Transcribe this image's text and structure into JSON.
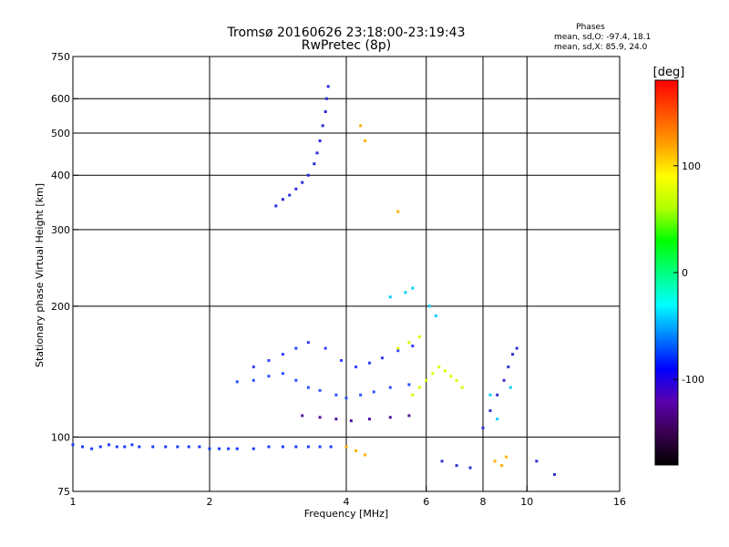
{
  "header": {
    "title": "Tromsø 20160626 23:18:00-23:19:43",
    "subtitle": "RwPretec (8p)",
    "stats_title": "Phases",
    "stats_o": "mean, sd,O: -97.4, 18.1",
    "stats_x": "mean, sd,X:  85.9, 24.0"
  },
  "chart_data": {
    "type": "scatter",
    "title": "Tromsø 20160626 23:18:00-23:19:43",
    "subtitle": "RwPretec (8p)",
    "xlabel": "Frequency [MHz]",
    "ylabel": "Stationary phase Virtual Height [km]",
    "x_scale": "log",
    "y_scale": "log",
    "xlim": [
      1,
      16
    ],
    "ylim": [
      75,
      750
    ],
    "x_ticks": [
      1,
      2,
      4,
      6,
      8,
      10,
      16
    ],
    "y_ticks": [
      75,
      100,
      200,
      300,
      400,
      500,
      600,
      750
    ],
    "x_grid": [
      2,
      4,
      6,
      8,
      10
    ],
    "y_grid": [
      100,
      200,
      300,
      400,
      500,
      600
    ],
    "colorbar": {
      "label": "[deg]",
      "range": [
        -180,
        180
      ],
      "ticks": [
        100,
        0,
        -100
      ],
      "colormap": [
        "#000000",
        "#3a0050",
        "#5a00b0",
        "#0000ff",
        "#0080ff",
        "#00ffff",
        "#00ff80",
        "#00ff00",
        "#b0ff00",
        "#ffff00",
        "#ffa000",
        "#ff5000",
        "#ff0000"
      ]
    },
    "series": [
      {
        "color": "#1a3cff",
        "points": [
          [
            1.0,
            96
          ],
          [
            1.05,
            95
          ],
          [
            1.1,
            94
          ],
          [
            1.15,
            95
          ],
          [
            1.2,
            96
          ],
          [
            1.25,
            95
          ],
          [
            1.3,
            95
          ],
          [
            1.35,
            96
          ],
          [
            1.4,
            95
          ],
          [
            1.5,
            95
          ],
          [
            1.6,
            95
          ],
          [
            1.7,
            95
          ],
          [
            1.8,
            95
          ],
          [
            1.9,
            95
          ],
          [
            2.0,
            94
          ],
          [
            2.1,
            94
          ],
          [
            2.2,
            94
          ],
          [
            2.3,
            94
          ],
          [
            2.5,
            94
          ],
          [
            2.7,
            95
          ],
          [
            2.9,
            95
          ],
          [
            3.1,
            95
          ],
          [
            3.3,
            95
          ],
          [
            3.5,
            95
          ],
          [
            3.7,
            95
          ]
        ]
      },
      {
        "color": "#2a2ae0",
        "points": [
          [
            2.8,
            340
          ],
          [
            2.9,
            352
          ],
          [
            3.0,
            360
          ],
          [
            3.1,
            372
          ],
          [
            3.2,
            385
          ],
          [
            3.3,
            400
          ],
          [
            3.4,
            425
          ],
          [
            3.45,
            450
          ],
          [
            3.5,
            480
          ],
          [
            3.55,
            520
          ],
          [
            3.6,
            560
          ],
          [
            3.62,
            600
          ],
          [
            3.65,
            640
          ]
        ]
      },
      {
        "color": "#2850ff",
        "points": [
          [
            2.3,
            134
          ],
          [
            2.5,
            135
          ],
          [
            2.7,
            138
          ],
          [
            2.9,
            140
          ],
          [
            3.1,
            135
          ],
          [
            3.3,
            130
          ],
          [
            3.5,
            128
          ],
          [
            3.8,
            125
          ],
          [
            4.0,
            123
          ],
          [
            4.3,
            125
          ],
          [
            4.6,
            127
          ],
          [
            5.0,
            130
          ],
          [
            5.5,
            132
          ]
        ]
      },
      {
        "color": "#3040ff",
        "points": [
          [
            2.5,
            145
          ],
          [
            2.7,
            150
          ],
          [
            2.9,
            155
          ],
          [
            3.1,
            160
          ],
          [
            3.3,
            165
          ],
          [
            3.6,
            160
          ],
          [
            3.9,
            150
          ],
          [
            4.2,
            145
          ],
          [
            4.5,
            148
          ],
          [
            4.8,
            152
          ],
          [
            5.2,
            158
          ],
          [
            5.6,
            162
          ]
        ]
      },
      {
        "color": "#5010a0",
        "points": [
          [
            3.2,
            112
          ],
          [
            3.5,
            111
          ],
          [
            3.8,
            110
          ],
          [
            4.1,
            109
          ],
          [
            4.5,
            110
          ],
          [
            5.0,
            111
          ],
          [
            5.5,
            112
          ]
        ]
      },
      {
        "color": "#d8ff00",
        "points": [
          [
            5.6,
            125
          ],
          [
            5.8,
            130
          ],
          [
            6.0,
            135
          ],
          [
            6.2,
            140
          ],
          [
            6.4,
            145
          ],
          [
            6.6,
            142
          ],
          [
            6.8,
            138
          ],
          [
            7.0,
            135
          ],
          [
            7.2,
            130
          ],
          [
            5.2,
            160
          ],
          [
            5.5,
            165
          ],
          [
            5.8,
            170
          ]
        ]
      },
      {
        "color": "#ffb000",
        "points": [
          [
            4.0,
            95
          ],
          [
            4.2,
            93
          ],
          [
            4.4,
            91
          ],
          [
            8.5,
            88
          ],
          [
            8.8,
            86
          ],
          [
            9.0,
            90
          ],
          [
            4.4,
            480
          ],
          [
            4.3,
            520
          ],
          [
            5.2,
            330
          ]
        ]
      },
      {
        "color": "#00d0ff",
        "points": [
          [
            5.0,
            210
          ],
          [
            5.4,
            215
          ],
          [
            5.6,
            220
          ],
          [
            6.1,
            200
          ],
          [
            6.3,
            190
          ],
          [
            8.3,
            125
          ],
          [
            8.6,
            110
          ],
          [
            9.2,
            130
          ]
        ]
      },
      {
        "color": "#3030d0",
        "points": [
          [
            8.0,
            105
          ],
          [
            8.3,
            115
          ],
          [
            8.6,
            125
          ],
          [
            8.9,
            135
          ],
          [
            9.1,
            145
          ],
          [
            9.3,
            155
          ],
          [
            9.5,
            160
          ],
          [
            6.5,
            88
          ],
          [
            7.0,
            86
          ],
          [
            7.5,
            85
          ],
          [
            10.5,
            88
          ],
          [
            11.5,
            82
          ]
        ]
      }
    ]
  }
}
